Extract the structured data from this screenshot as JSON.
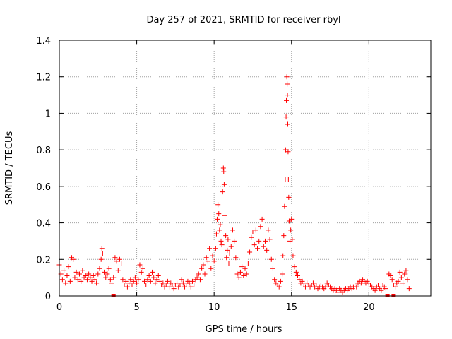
{
  "chart_data": {
    "type": "scatter",
    "title": "Day 257 of 2021, SRMTID for receiver rbyl",
    "xlabel": "GPS time / hours",
    "ylabel": "SRMTID / TECUs",
    "xlim": [
      0,
      24
    ],
    "ylim": [
      0,
      1.4
    ],
    "xticks": [
      0,
      5,
      10,
      15,
      20
    ],
    "xtick_labels": [
      "0",
      "5",
      "10",
      "15",
      "20"
    ],
    "yticks": [
      0,
      0.2,
      0.4,
      0.6,
      0.8,
      1.0,
      1.2,
      1.4
    ],
    "ytick_labels": [
      "0",
      "0.2",
      "0.4",
      "0.6",
      "0.8",
      "1",
      "1.2",
      "1.4"
    ],
    "grid": true,
    "marker": "plus",
    "color": "#ff0000",
    "series": [
      {
        "name": "SRMTID",
        "points": [
          [
            0.0,
            0.17
          ],
          [
            0.1,
            0.12
          ],
          [
            0.2,
            0.09
          ],
          [
            0.3,
            0.14
          ],
          [
            0.4,
            0.07
          ],
          [
            0.5,
            0.11
          ],
          [
            0.6,
            0.16
          ],
          [
            0.7,
            0.08
          ],
          [
            0.8,
            0.21
          ],
          [
            0.9,
            0.2
          ],
          [
            1.0,
            0.1
          ],
          [
            1.1,
            0.13
          ],
          [
            1.2,
            0.09
          ],
          [
            1.3,
            0.12
          ],
          [
            1.4,
            0.08
          ],
          [
            1.5,
            0.14
          ],
          [
            1.6,
            0.1
          ],
          [
            1.7,
            0.11
          ],
          [
            1.8,
            0.09
          ],
          [
            1.9,
            0.12
          ],
          [
            2.0,
            0.1
          ],
          [
            2.1,
            0.08
          ],
          [
            2.2,
            0.11
          ],
          [
            2.3,
            0.09
          ],
          [
            2.4,
            0.07
          ],
          [
            2.5,
            0.12
          ],
          [
            2.6,
            0.15
          ],
          [
            2.7,
            0.2
          ],
          [
            2.75,
            0.26
          ],
          [
            2.8,
            0.23
          ],
          [
            2.9,
            0.13
          ],
          [
            3.0,
            0.1
          ],
          [
            3.1,
            0.12
          ],
          [
            3.2,
            0.15
          ],
          [
            3.3,
            0.09
          ],
          [
            3.4,
            0.07
          ],
          [
            3.5,
            0.1
          ],
          [
            3.6,
            0.21
          ],
          [
            3.7,
            0.19
          ],
          [
            3.8,
            0.14
          ],
          [
            3.9,
            0.2
          ],
          [
            4.0,
            0.18
          ],
          [
            4.1,
            0.09
          ],
          [
            4.2,
            0.06
          ],
          [
            4.3,
            0.08
          ],
          [
            4.4,
            0.05
          ],
          [
            4.5,
            0.07
          ],
          [
            4.6,
            0.09
          ],
          [
            4.7,
            0.06
          ],
          [
            4.8,
            0.08
          ],
          [
            4.9,
            0.1
          ],
          [
            5.0,
            0.07
          ],
          [
            5.1,
            0.09
          ],
          [
            5.2,
            0.17
          ],
          [
            5.3,
            0.13
          ],
          [
            5.4,
            0.15
          ],
          [
            5.5,
            0.08
          ],
          [
            5.6,
            0.06
          ],
          [
            5.7,
            0.09
          ],
          [
            5.8,
            0.11
          ],
          [
            5.9,
            0.08
          ],
          [
            6.0,
            0.13
          ],
          [
            6.1,
            0.1
          ],
          [
            6.2,
            0.07
          ],
          [
            6.3,
            0.09
          ],
          [
            6.4,
            0.11
          ],
          [
            6.5,
            0.08
          ],
          [
            6.6,
            0.06
          ],
          [
            6.7,
            0.07
          ],
          [
            6.8,
            0.05
          ],
          [
            6.9,
            0.06
          ],
          [
            7.0,
            0.08
          ],
          [
            7.1,
            0.05
          ],
          [
            7.2,
            0.07
          ],
          [
            7.3,
            0.06
          ],
          [
            7.4,
            0.04
          ],
          [
            7.5,
            0.06
          ],
          [
            7.6,
            0.07
          ],
          [
            7.7,
            0.05
          ],
          [
            7.8,
            0.06
          ],
          [
            7.9,
            0.09
          ],
          [
            8.0,
            0.07
          ],
          [
            8.1,
            0.05
          ],
          [
            8.2,
            0.06
          ],
          [
            8.3,
            0.08
          ],
          [
            8.4,
            0.07
          ],
          [
            8.5,
            0.05
          ],
          [
            8.6,
            0.08
          ],
          [
            8.7,
            0.06
          ],
          [
            8.8,
            0.09
          ],
          [
            8.9,
            0.1
          ],
          [
            9.0,
            0.12
          ],
          [
            9.1,
            0.09
          ],
          [
            9.2,
            0.15
          ],
          [
            9.3,
            0.17
          ],
          [
            9.4,
            0.12
          ],
          [
            9.5,
            0.21
          ],
          [
            9.6,
            0.19
          ],
          [
            9.7,
            0.26
          ],
          [
            9.8,
            0.15
          ],
          [
            9.9,
            0.22
          ],
          [
            10.0,
            0.19
          ],
          [
            10.1,
            0.26
          ],
          [
            10.15,
            0.34
          ],
          [
            10.2,
            0.42
          ],
          [
            10.25,
            0.5
          ],
          [
            10.3,
            0.45
          ],
          [
            10.35,
            0.36
          ],
          [
            10.4,
            0.39
          ],
          [
            10.45,
            0.3
          ],
          [
            10.5,
            0.28
          ],
          [
            10.55,
            0.57
          ],
          [
            10.6,
            0.7
          ],
          [
            10.62,
            0.68
          ],
          [
            10.65,
            0.61
          ],
          [
            10.7,
            0.44
          ],
          [
            10.75,
            0.33
          ],
          [
            10.8,
            0.21
          ],
          [
            10.85,
            0.25
          ],
          [
            10.9,
            0.31
          ],
          [
            10.95,
            0.18
          ],
          [
            11.0,
            0.23
          ],
          [
            11.1,
            0.27
          ],
          [
            11.2,
            0.36
          ],
          [
            11.3,
            0.3
          ],
          [
            11.4,
            0.21
          ],
          [
            11.5,
            0.12
          ],
          [
            11.6,
            0.1
          ],
          [
            11.7,
            0.13
          ],
          [
            11.8,
            0.16
          ],
          [
            11.9,
            0.11
          ],
          [
            12.0,
            0.15
          ],
          [
            12.1,
            0.12
          ],
          [
            12.2,
            0.18
          ],
          [
            12.3,
            0.24
          ],
          [
            12.4,
            0.32
          ],
          [
            12.5,
            0.35
          ],
          [
            12.6,
            0.28
          ],
          [
            12.7,
            0.36
          ],
          [
            12.8,
            0.26
          ],
          [
            12.9,
            0.3
          ],
          [
            13.0,
            0.38
          ],
          [
            13.1,
            0.42
          ],
          [
            13.2,
            0.27
          ],
          [
            13.3,
            0.3
          ],
          [
            13.4,
            0.25
          ],
          [
            13.5,
            0.36
          ],
          [
            13.6,
            0.31
          ],
          [
            13.7,
            0.2
          ],
          [
            13.8,
            0.15
          ],
          [
            13.9,
            0.09
          ],
          [
            14.0,
            0.07
          ],
          [
            14.1,
            0.06
          ],
          [
            14.2,
            0.05
          ],
          [
            14.3,
            0.08
          ],
          [
            14.4,
            0.12
          ],
          [
            14.45,
            0.22
          ],
          [
            14.5,
            0.33
          ],
          [
            14.55,
            0.49
          ],
          [
            14.6,
            0.64
          ],
          [
            14.62,
            0.8
          ],
          [
            14.65,
            0.98
          ],
          [
            14.67,
            1.07
          ],
          [
            14.7,
            1.2
          ],
          [
            14.72,
            1.16
          ],
          [
            14.74,
            1.1
          ],
          [
            14.76,
            0.94
          ],
          [
            14.78,
            0.79
          ],
          [
            14.8,
            0.64
          ],
          [
            14.82,
            0.54
          ],
          [
            14.85,
            0.41
          ],
          [
            14.9,
            0.3
          ],
          [
            14.95,
            0.36
          ],
          [
            15.0,
            0.42
          ],
          [
            15.05,
            0.31
          ],
          [
            15.1,
            0.22
          ],
          [
            15.2,
            0.16
          ],
          [
            15.3,
            0.13
          ],
          [
            15.4,
            0.11
          ],
          [
            15.5,
            0.09
          ],
          [
            15.6,
            0.07
          ],
          [
            15.7,
            0.08
          ],
          [
            15.8,
            0.06
          ],
          [
            15.9,
            0.05
          ],
          [
            16.0,
            0.07
          ],
          [
            16.1,
            0.06
          ],
          [
            16.2,
            0.05
          ],
          [
            16.3,
            0.06
          ],
          [
            16.4,
            0.07
          ],
          [
            16.5,
            0.05
          ],
          [
            16.6,
            0.06
          ],
          [
            16.7,
            0.04
          ],
          [
            16.8,
            0.05
          ],
          [
            16.9,
            0.06
          ],
          [
            17.0,
            0.05
          ],
          [
            17.1,
            0.04
          ],
          [
            17.2,
            0.05
          ],
          [
            17.3,
            0.07
          ],
          [
            17.4,
            0.06
          ],
          [
            17.5,
            0.05
          ],
          [
            17.6,
            0.04
          ],
          [
            17.7,
            0.03
          ],
          [
            17.8,
            0.04
          ],
          [
            17.9,
            0.03
          ],
          [
            18.0,
            0.02
          ],
          [
            18.1,
            0.04
          ],
          [
            18.2,
            0.03
          ],
          [
            18.3,
            0.02
          ],
          [
            18.4,
            0.03
          ],
          [
            18.5,
            0.04
          ],
          [
            18.6,
            0.03
          ],
          [
            18.7,
            0.04
          ],
          [
            18.8,
            0.05
          ],
          [
            18.9,
            0.04
          ],
          [
            19.0,
            0.05
          ],
          [
            19.1,
            0.06
          ],
          [
            19.2,
            0.05
          ],
          [
            19.3,
            0.07
          ],
          [
            19.4,
            0.08
          ],
          [
            19.5,
            0.07
          ],
          [
            19.6,
            0.09
          ],
          [
            19.7,
            0.08
          ],
          [
            19.8,
            0.07
          ],
          [
            19.9,
            0.08
          ],
          [
            20.0,
            0.07
          ],
          [
            20.1,
            0.06
          ],
          [
            20.2,
            0.05
          ],
          [
            20.3,
            0.04
          ],
          [
            20.4,
            0.03
          ],
          [
            20.5,
            0.05
          ],
          [
            20.6,
            0.06
          ],
          [
            20.7,
            0.04
          ],
          [
            20.8,
            0.03
          ],
          [
            20.9,
            0.06
          ],
          [
            21.0,
            0.05
          ],
          [
            21.1,
            0.04
          ],
          [
            21.3,
            0.12
          ],
          [
            21.4,
            0.11
          ],
          [
            21.5,
            0.09
          ],
          [
            21.6,
            0.06
          ],
          [
            21.7,
            0.05
          ],
          [
            21.8,
            0.07
          ],
          [
            21.9,
            0.08
          ],
          [
            22.0,
            0.13
          ],
          [
            22.1,
            0.1
          ],
          [
            22.2,
            0.07
          ],
          [
            22.3,
            0.12
          ],
          [
            22.4,
            0.14
          ],
          [
            22.5,
            0.09
          ],
          [
            22.6,
            0.04
          ]
        ]
      }
    ],
    "squares": [
      [
        3.5,
        0.0
      ],
      [
        21.2,
        0.0
      ],
      [
        21.6,
        0.0
      ]
    ]
  }
}
